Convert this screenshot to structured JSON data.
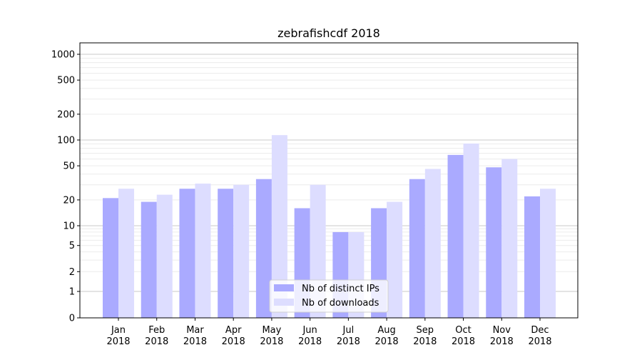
{
  "chart_data": {
    "type": "bar",
    "title": "zebrafishcdf 2018",
    "xlabel": "",
    "ylabel": "",
    "yscale": "symlog",
    "ylim": [
      0,
      1300
    ],
    "yticks": [
      0,
      1,
      2,
      5,
      10,
      20,
      50,
      100,
      200,
      500,
      1000
    ],
    "grid": true,
    "legend_position": "bottom-center",
    "categories": [
      "Jan\n2018",
      "Feb\n2018",
      "Mar\n2018",
      "Apr\n2018",
      "May\n2018",
      "Jun\n2018",
      "Jul\n2018",
      "Aug\n2018",
      "Sep\n2018",
      "Oct\n2018",
      "Nov\n2018",
      "Dec\n2018"
    ],
    "series": [
      {
        "name": "Nb of distinct IPs",
        "color": "#aaaaff",
        "values": [
          21,
          19,
          27,
          27,
          35,
          16,
          8,
          16,
          35,
          67,
          48,
          22
        ]
      },
      {
        "name": "Nb of downloads",
        "color": "#ddddff",
        "values": [
          27,
          23,
          31,
          30,
          114,
          30,
          8,
          19,
          46,
          91,
          60,
          27
        ]
      }
    ]
  }
}
